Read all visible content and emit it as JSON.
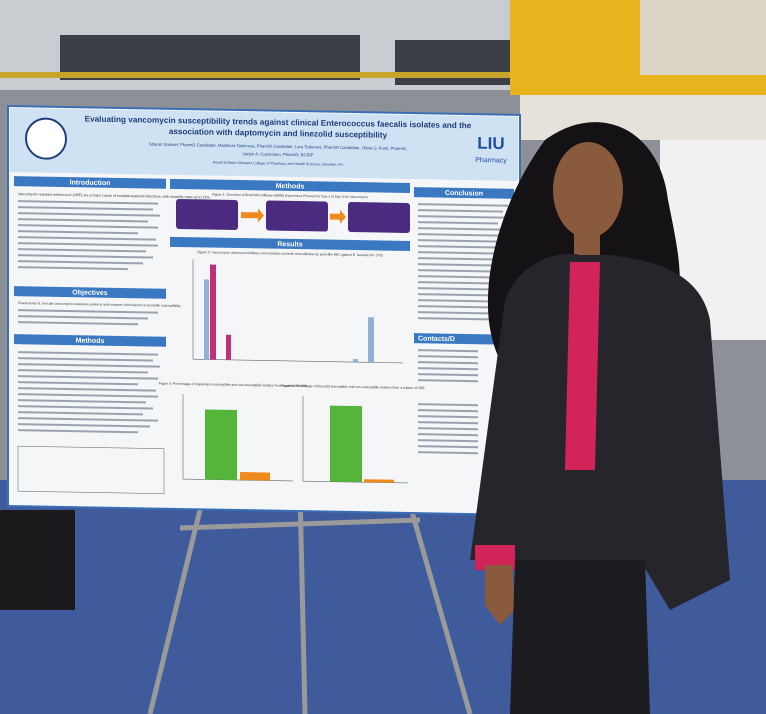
{
  "poster": {
    "title": [
      "Evaluating vancomycin susceptibility trends against clinical Enterococcus faecalis isolates and the",
      "association with daptomycin and linezolid susceptibility"
    ],
    "authors": [
      "Sharon Samuel, PharmD Candidate, Mashtura Tashnuva, PharmD Candidate, Lora Todorova, PharmD Candidate, Olivia G. Funk, PharmD,",
      "Jaclyn A. Cusumano, PharmD, BCIDP"
    ],
    "affiliation": "Arnold & Marie Schwartz College of Pharmacy and Health Sciences, Brooklyn, NY",
    "logo": "LIU",
    "logo_sub": "Pharmacy",
    "sections": {
      "introduction": "Introduction",
      "objectives": "Objectives",
      "methods_left": "Methods",
      "methods": "Methods",
      "results": "Results",
      "conclusion": "Conclusion",
      "contacts": "Contacts/D"
    },
    "figure_1": "Figure 1: Overview of Broth Microdilution (BMD) Experiment Process for Day 1 to Day 3 for Vancomycin",
    "figure_2": "Figure 2: Vancomycin minimum inhibitory concentration via broth microdilution by penicillin MIC against E. faecalis (N= 270)",
    "figure_3": "Figure 3: Percentage of daptomycin susceptible and non-susceptible isolates from a subset of VRE",
    "figure_4": "Figure 4: Percentage of linezolid susceptible and non-susceptible isolates from a subset of VRE",
    "objectives_text": "Characterize E. faecalis vancomycin resistance patterns and compare them based on penicillin susceptibility.",
    "intro_text": "Vancomycin-resistant enterococci (VRE) are a major cause of hospital-acquired infections, with mortality rates up to 21%."
  }
}
